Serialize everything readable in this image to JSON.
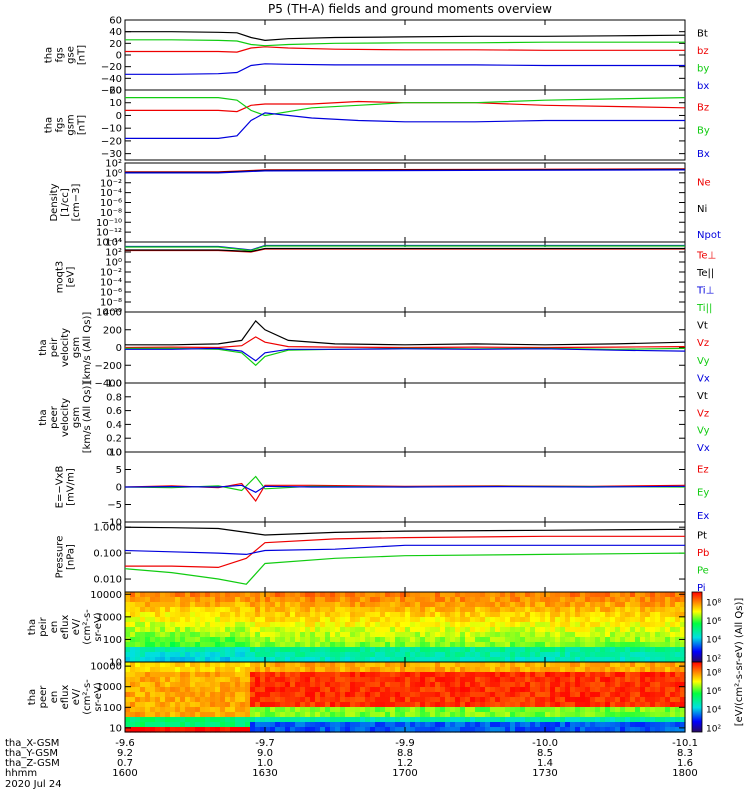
{
  "title": "P5 (TH-A) fields and ground moments overview",
  "date": "2020 Jul 24",
  "colors": {
    "black": "#000000",
    "red": "#ee0000",
    "green": "#11cc11",
    "blue": "#0000dd"
  },
  "chart_data": [
    {
      "id": "fgs-gse",
      "type": "line",
      "ylabel": [
        "tha",
        "fgs",
        "gse",
        "[nT]"
      ],
      "ylim": [
        -60,
        60
      ],
      "ticks": [
        "60",
        "40",
        "20",
        "0",
        "−20",
        "−40",
        "−60"
      ],
      "tick_values": [
        60,
        40,
        20,
        0,
        -20,
        -40,
        -60
      ],
      "legend": [
        "Bt",
        "bz",
        "by",
        "bx"
      ],
      "legend_colors": [
        "black",
        "red",
        "green",
        "blue"
      ],
      "series": [
        {
          "name": "Bt",
          "color": "black",
          "x": [
            1600,
            1610,
            1620,
            1624,
            1627,
            1630,
            1635,
            1645,
            1700,
            1715,
            1730,
            1745,
            1800
          ],
          "y": [
            40,
            40,
            39,
            38,
            30,
            25,
            28,
            30,
            31,
            32,
            32,
            33,
            34
          ]
        },
        {
          "name": "bz",
          "color": "red",
          "x": [
            1600,
            1610,
            1620,
            1624,
            1627,
            1630,
            1635,
            1645,
            1700,
            1715,
            1730,
            1745,
            1800
          ],
          "y": [
            6,
            6,
            6,
            5,
            12,
            14,
            12,
            10,
            9,
            9,
            8,
            8,
            8
          ]
        },
        {
          "name": "by",
          "color": "green",
          "x": [
            1600,
            1610,
            1620,
            1624,
            1627,
            1630,
            1635,
            1645,
            1700,
            1715,
            1730,
            1745,
            1800
          ],
          "y": [
            26,
            26,
            25,
            24,
            18,
            16,
            18,
            20,
            21,
            21,
            22,
            22,
            22
          ]
        },
        {
          "name": "bx",
          "color": "blue",
          "x": [
            1600,
            1610,
            1620,
            1624,
            1627,
            1630,
            1635,
            1645,
            1700,
            1715,
            1730,
            1745,
            1800
          ],
          "y": [
            -33,
            -33,
            -32,
            -30,
            -18,
            -15,
            -16,
            -17,
            -17,
            -17,
            -18,
            -18,
            -18
          ]
        }
      ]
    },
    {
      "id": "fgs-gsm",
      "type": "line",
      "ylabel": [
        "tha",
        "fgs",
        "gsm",
        "[nT]"
      ],
      "ylim": [
        -35,
        20
      ],
      "ticks": [
        "20",
        "10",
        "0",
        "−10",
        "−20",
        "−30"
      ],
      "tick_values": [
        20,
        10,
        0,
        -10,
        -20,
        -30
      ],
      "legend": [
        "Bz",
        "By",
        "Bx"
      ],
      "legend_colors": [
        "red",
        "green",
        "blue"
      ],
      "series": [
        {
          "name": "Bz",
          "color": "red",
          "x": [
            1600,
            1610,
            1620,
            1624,
            1627,
            1630,
            1640,
            1650,
            1700,
            1715,
            1730,
            1745,
            1800
          ],
          "y": [
            4,
            4,
            4,
            3,
            8,
            9,
            9,
            11,
            10,
            10,
            8,
            7,
            6
          ]
        },
        {
          "name": "By",
          "color": "green",
          "x": [
            1600,
            1610,
            1620,
            1624,
            1627,
            1630,
            1640,
            1650,
            1700,
            1715,
            1730,
            1745,
            1800
          ],
          "y": [
            14,
            14,
            14,
            12,
            4,
            0,
            6,
            8,
            10,
            10,
            12,
            13,
            14
          ]
        },
        {
          "name": "Bx",
          "color": "blue",
          "x": [
            1600,
            1610,
            1620,
            1624,
            1627,
            1630,
            1640,
            1650,
            1700,
            1715,
            1730,
            1745,
            1800
          ],
          "y": [
            -18,
            -18,
            -18,
            -16,
            -4,
            2,
            -2,
            -4,
            -5,
            -5,
            -4,
            -4,
            -4
          ]
        }
      ]
    },
    {
      "id": "density",
      "type": "line",
      "log": true,
      "ylabel": [
        "Density",
        "[1/cc]",
        "[cm−3]"
      ],
      "ylim": [
        -14,
        2
      ],
      "ticks": [
        "10²",
        "10⁰",
        "10⁻²",
        "10⁻⁴",
        "10⁻⁶",
        "10⁻⁸",
        "10⁻¹⁰",
        "10⁻¹²",
        "10⁻¹⁴"
      ],
      "tick_values": [
        2,
        0,
        -2,
        -4,
        -6,
        -8,
        -10,
        -12,
        -14
      ],
      "legend": [
        "Ne",
        "Ni",
        "Npot"
      ],
      "legend_colors": [
        "red",
        "black",
        "blue"
      ],
      "series": [
        {
          "name": "Ne",
          "color": "red",
          "x": [
            1600,
            1620,
            1630,
            1800
          ],
          "y": [
            0.2,
            0.2,
            0.6,
            0.8
          ]
        },
        {
          "name": "Ni",
          "color": "black",
          "x": [
            1600,
            1620,
            1630,
            1800
          ],
          "y": [
            0.1,
            0.1,
            0.5,
            0.7
          ]
        },
        {
          "name": "Npot",
          "color": "blue",
          "x": [
            1600,
            1620,
            1630,
            1800
          ],
          "y": [
            0.0,
            0.0,
            0.4,
            0.6
          ]
        }
      ]
    },
    {
      "id": "temperature",
      "type": "line",
      "log": true,
      "ylabel": [
        "moqt3",
        "[eV]"
      ],
      "ylim": [
        -10,
        4
      ],
      "ticks": [
        "10⁴",
        "10²",
        "10⁰",
        "10⁻²",
        "10⁻⁴",
        "10⁻⁶",
        "10⁻⁸",
        "10⁻¹⁰"
      ],
      "tick_values": [
        4,
        2,
        0,
        -2,
        -4,
        -6,
        -8,
        -10
      ],
      "legend": [
        "Te⊥",
        "Te||",
        "Ti⊥",
        "Ti||"
      ],
      "legend_colors": [
        "red",
        "black",
        "blue",
        "green"
      ],
      "series": [
        {
          "name": "Te⊥",
          "color": "red",
          "x": [
            1600,
            1620,
            1627,
            1630,
            1800
          ],
          "y": [
            2.3,
            2.3,
            2.0,
            2.6,
            2.6
          ]
        },
        {
          "name": "Te||",
          "color": "black",
          "x": [
            1600,
            1620,
            1627,
            1630,
            1800
          ],
          "y": [
            2.4,
            2.4,
            2.1,
            2.7,
            2.7
          ]
        },
        {
          "name": "Ti⊥",
          "color": "blue",
          "x": [
            1600,
            1620,
            1627,
            1630,
            1800
          ],
          "y": [
            3.1,
            3.1,
            2.4,
            3.3,
            3.3
          ]
        },
        {
          "name": "Ti||",
          "color": "green",
          "x": [
            1600,
            1620,
            1627,
            1630,
            1800
          ],
          "y": [
            3.0,
            3.0,
            2.3,
            3.2,
            3.2
          ]
        }
      ]
    },
    {
      "id": "ion-velocity",
      "type": "line",
      "ylabel": [
        "tha",
        "peir",
        "velocity",
        "gsm",
        "[km/s (All Qs)]"
      ],
      "ylim": [
        -400,
        400
      ],
      "ticks": [
        "400",
        "200",
        "0",
        "−200",
        "−400"
      ],
      "tick_values": [
        400,
        200,
        0,
        -200,
        -400
      ],
      "legend": [
        "Vt",
        "Vz",
        "Vy",
        "Vx"
      ],
      "legend_colors": [
        "black",
        "red",
        "green",
        "blue"
      ],
      "series": [
        {
          "name": "Vt",
          "color": "black",
          "x": [
            1600,
            1610,
            1620,
            1625,
            1628,
            1630,
            1635,
            1645,
            1700,
            1715,
            1730,
            1745,
            1800
          ],
          "y": [
            30,
            30,
            40,
            80,
            300,
            200,
            80,
            40,
            30,
            40,
            30,
            40,
            60
          ]
        },
        {
          "name": "Vz",
          "color": "red",
          "x": [
            1600,
            1610,
            1620,
            1625,
            1628,
            1630,
            1635,
            1645,
            1700,
            1715,
            1730,
            1745,
            1800
          ],
          "y": [
            0,
            5,
            0,
            20,
            120,
            60,
            10,
            5,
            0,
            5,
            0,
            5,
            10
          ]
        },
        {
          "name": "Vy",
          "color": "green",
          "x": [
            1600,
            1610,
            1620,
            1625,
            1628,
            1630,
            1635,
            1645,
            1700,
            1715,
            1730,
            1745,
            1800
          ],
          "y": [
            -10,
            -10,
            -20,
            -60,
            -200,
            -100,
            -30,
            -20,
            -10,
            -15,
            -10,
            -20,
            -10
          ]
        },
        {
          "name": "Vx",
          "color": "blue",
          "x": [
            1600,
            1610,
            1620,
            1625,
            1628,
            1630,
            1635,
            1645,
            1700,
            1715,
            1730,
            1745,
            1800
          ],
          "y": [
            -20,
            -20,
            -10,
            -40,
            -150,
            -60,
            -20,
            -20,
            -15,
            -20,
            -15,
            -30,
            -40
          ]
        }
      ]
    },
    {
      "id": "electron-velocity",
      "type": "line",
      "ylabel": [
        "tha",
        "peer",
        "velocity",
        "gsm",
        "[km/s (All Qs)]"
      ],
      "ylim": [
        0,
        1
      ],
      "ticks": [
        "1.0",
        "0.8",
        "0.6",
        "0.4",
        "0.2",
        "0.0"
      ],
      "tick_values": [
        1.0,
        0.8,
        0.6,
        0.4,
        0.2,
        0.0
      ],
      "legend": [
        "Vt",
        "Vz",
        "Vy",
        "Vx"
      ],
      "legend_colors": [
        "black",
        "red",
        "green",
        "blue"
      ],
      "series": []
    },
    {
      "id": "efield",
      "type": "line",
      "ylabel": [
        "E=−VxB",
        "[mV/m]"
      ],
      "ylim": [
        -10,
        10
      ],
      "ticks": [
        "10",
        "5",
        "0",
        "−5",
        "−10"
      ],
      "tick_values": [
        10,
        5,
        0,
        -5,
        -10
      ],
      "legend": [
        "Ez",
        "Ey",
        "Ex"
      ],
      "legend_colors": [
        "red",
        "green",
        "blue"
      ],
      "series": [
        {
          "name": "Ez",
          "color": "red",
          "x": [
            1600,
            1610,
            1620,
            1625,
            1628,
            1630,
            1640,
            1700,
            1720,
            1740,
            1800
          ],
          "y": [
            0,
            0.3,
            -0.2,
            1,
            -4,
            0.5,
            0.5,
            0.2,
            0.3,
            0.2,
            0.5
          ]
        },
        {
          "name": "Ey",
          "color": "green",
          "x": [
            1600,
            1610,
            1620,
            1625,
            1628,
            1630,
            1640,
            1700,
            1720,
            1740,
            1800
          ],
          "y": [
            0,
            -0.2,
            0.3,
            -1,
            3,
            -0.5,
            0.2,
            0,
            0.2,
            0.1,
            0
          ]
        },
        {
          "name": "Ex",
          "color": "blue",
          "x": [
            1600,
            1610,
            1620,
            1625,
            1628,
            1630,
            1640,
            1700,
            1720,
            1740,
            1800
          ],
          "y": [
            0,
            0.1,
            0,
            0.5,
            -1.5,
            0.2,
            0,
            0,
            0.1,
            0,
            0.2
          ]
        }
      ]
    },
    {
      "id": "pressure",
      "type": "line",
      "log": true,
      "ylabel": [
        "Pressure",
        "[nPa]"
      ],
      "ylim": [
        -2.5,
        0.2
      ],
      "ticks": [
        "1.000",
        "0.100",
        "0.010"
      ],
      "tick_values": [
        0,
        -1,
        -2
      ],
      "legend": [
        "Pt",
        "Pb",
        "Pe",
        "Pi"
      ],
      "legend_colors": [
        "black",
        "red",
        "green",
        "blue"
      ],
      "series": [
        {
          "name": "Pt",
          "color": "black",
          "x": [
            1600,
            1610,
            1620,
            1626,
            1630,
            1645,
            1700,
            1730,
            1800
          ],
          "y": [
            0.0,
            -0.02,
            -0.05,
            -0.2,
            -0.3,
            -0.2,
            -0.15,
            -0.12,
            -0.08
          ]
        },
        {
          "name": "Pb",
          "color": "red",
          "x": [
            1600,
            1610,
            1620,
            1626,
            1630,
            1645,
            1700,
            1730,
            1800
          ],
          "y": [
            -1.5,
            -1.5,
            -1.55,
            -1.2,
            -0.6,
            -0.45,
            -0.4,
            -0.35,
            -0.35
          ]
        },
        {
          "name": "Pe",
          "color": "green",
          "x": [
            1600,
            1610,
            1620,
            1626,
            1630,
            1645,
            1700,
            1730,
            1800
          ],
          "y": [
            -1.6,
            -1.75,
            -2.0,
            -2.2,
            -1.4,
            -1.2,
            -1.1,
            -1.05,
            -1.0
          ]
        },
        {
          "name": "Pi",
          "color": "blue",
          "x": [
            1600,
            1610,
            1620,
            1626,
            1630,
            1645,
            1700,
            1730,
            1800
          ],
          "y": [
            -0.9,
            -0.95,
            -1.0,
            -1.05,
            -0.9,
            -0.85,
            -0.7,
            -0.7,
            -0.7
          ]
        }
      ]
    },
    {
      "id": "ion-spectrogram",
      "type": "heatmap",
      "ylabel": [
        "tha",
        "peir",
        "en",
        "eflux",
        "eV/",
        "(cm²-s-",
        "sr-eV)"
      ],
      "ylim": [
        1,
        4.1
      ],
      "ticks": [
        "10000",
        "1000",
        "100",
        "10"
      ],
      "tick_values": [
        4,
        3,
        2,
        1
      ],
      "colorbar": {
        "ticks": [
          "10⁸",
          "10⁶",
          "10⁴",
          "10²"
        ],
        "tick_values": [
          8,
          6,
          4,
          2
        ],
        "range": [
          1.5,
          9
        ]
      }
    },
    {
      "id": "electron-spectrogram",
      "type": "heatmap",
      "ylabel": [
        "tha",
        "peer",
        "en",
        "eflux",
        "eV/",
        "(cm²-s-",
        "sr-eV)"
      ],
      "ylim": [
        0.8,
        4.2
      ],
      "ticks": [
        "10000",
        "1000",
        "100",
        "10"
      ],
      "tick_values": [
        4,
        3,
        2,
        1
      ],
      "colorbar": {
        "ticks": [
          "10⁸",
          "10⁶",
          "10⁴",
          "10²"
        ],
        "tick_values": [
          8,
          6,
          4,
          2
        ],
        "range": [
          1.5,
          9
        ]
      }
    }
  ],
  "colorbar_label": "[eV/(cm²-s-sr-eV) (All Qs)]",
  "xaxis": {
    "time_ticks": [
      1600,
      1630,
      1700,
      1730,
      1800
    ],
    "rows": [
      {
        "label": "tha_X-GSM",
        "values": [
          "-9.6",
          "-9.7",
          "-9.9",
          "-10.0",
          "-10.1"
        ],
        "subvalues": [
          "9.2",
          "9.0",
          "8.8",
          "8.5",
          "8.3"
        ],
        "sublabel": "tha_Y-GSM"
      },
      {
        "label": "tha_Z-GSM",
        "values": [
          "0.7",
          "1.0",
          "1.2",
          "1.4",
          "1.6"
        ]
      },
      {
        "label": "hhmm",
        "values": [
          "1600",
          "1630",
          "1700",
          "1730",
          "1800"
        ]
      }
    ]
  }
}
